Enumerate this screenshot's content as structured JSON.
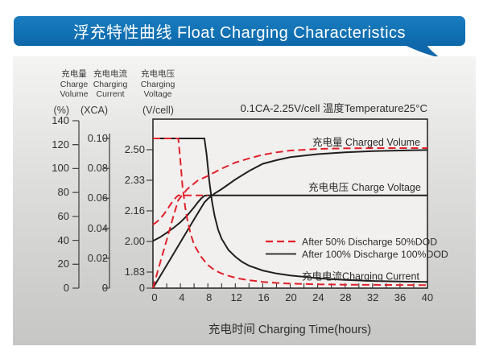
{
  "banner": {
    "title": "浮充特性曲线 Float Charging Characteristics",
    "color": "#1172b4"
  },
  "axes_headers": {
    "volume": {
      "line1": "充电量",
      "line2": "Charge",
      "line3": "Volume",
      "unit": "(%)"
    },
    "current": {
      "line1": "充电电流",
      "line2": "Charging",
      "line3": "Current",
      "unit": "(XCA)"
    },
    "voltage": {
      "line1": "充电电压",
      "line2": "Charging",
      "line3": "Voltage",
      "unit": "(V/cell)"
    }
  },
  "legend": [
    {
      "label": "After 50% Discharge 50%DOD",
      "style": "dashed",
      "color": "#e2202b"
    },
    {
      "label": "After 100%  Discharge 100%DOD",
      "style": "solid",
      "color": "#231f20"
    }
  ],
  "curve_labels": {
    "volume": "充电量 Charged Volume",
    "voltage": "充电电压 Charge Voltage",
    "current": "充电电流Charging Current"
  },
  "chart_data": {
    "type": "line",
    "title": "浮充特性曲线 Float Charging Characteristics",
    "condition": "0.1CA-2.25V/cell   温度Temperature25°C",
    "grid": false,
    "legend_position": "inside-right-middle",
    "x": {
      "label": "充电时间 Charging Time(hours)",
      "min": 0,
      "max": 40,
      "tick_step": 4,
      "minor_tick_step": 2,
      "ticks": [
        "0",
        "4",
        "8",
        "12",
        "16",
        "20",
        "24",
        "28",
        "32",
        "36",
        "40"
      ]
    },
    "axes": {
      "volume": {
        "label": "充电量 Charge Volume",
        "unit": "(%)",
        "min": 0,
        "max": 140,
        "ticks": [
          "140",
          "120",
          "100",
          "80",
          "60",
          "40",
          "20",
          "0"
        ]
      },
      "current": {
        "label": "充电电流 Charging Current",
        "unit": "(XCA)",
        "min": 0,
        "max": 0.1,
        "ticks": [
          "0.10",
          "0.08",
          "0.06",
          "0.04",
          "0.02",
          "0"
        ]
      },
      "voltage": {
        "label": "充电电压 Charging Voltage",
        "unit": "(V/cell)",
        "ticks": [
          "2.50",
          "2.33",
          "2.16",
          "2.00",
          "1.83"
        ],
        "zero_tick": "0"
      }
    },
    "series": [
      {
        "name": "charged-volume-100dod",
        "dod": "100%",
        "axis": "volume",
        "style": "solid",
        "color": "#231f20",
        "points": [
          [
            0,
            0
          ],
          [
            2,
            19
          ],
          [
            4,
            38
          ],
          [
            6,
            57
          ],
          [
            7.5,
            71
          ],
          [
            8,
            74
          ],
          [
            9,
            78.5
          ],
          [
            10,
            82
          ],
          [
            12,
            90
          ],
          [
            14,
            97
          ],
          [
            16,
            103
          ],
          [
            18,
            106
          ],
          [
            20,
            108.5
          ],
          [
            24,
            111
          ],
          [
            28,
            112.5
          ],
          [
            32,
            113.5
          ],
          [
            36,
            114
          ],
          [
            40,
            114.4
          ]
        ]
      },
      {
        "name": "charge-voltage-100dod",
        "dod": "100%",
        "axis": "voltage",
        "style": "solid",
        "color": "#231f20",
        "points": [
          [
            0,
            2.0
          ],
          [
            1,
            2.02
          ],
          [
            2,
            2.045
          ],
          [
            3,
            2.072
          ],
          [
            4,
            2.103
          ],
          [
            5,
            2.14
          ],
          [
            6,
            2.185
          ],
          [
            6.5,
            2.21
          ],
          [
            7,
            2.232
          ],
          [
            7.5,
            2.248
          ],
          [
            8,
            2.25
          ],
          [
            40,
            2.25
          ]
        ]
      },
      {
        "name": "charging-current-100dod",
        "dod": "100%",
        "axis": "current",
        "style": "solid",
        "color": "#231f20",
        "points": [
          [
            0,
            0.1
          ],
          [
            7.5,
            0.1
          ],
          [
            7.8,
            0.09
          ],
          [
            8.2,
            0.072
          ],
          [
            8.6,
            0.058
          ],
          [
            9,
            0.048
          ],
          [
            9.5,
            0.039
          ],
          [
            10,
            0.033
          ],
          [
            11,
            0.0255
          ],
          [
            12,
            0.021
          ],
          [
            13,
            0.0175
          ],
          [
            14,
            0.015
          ],
          [
            16,
            0.0118
          ],
          [
            18,
            0.0098
          ],
          [
            20,
            0.0085
          ],
          [
            24,
            0.0066
          ],
          [
            28,
            0.0055
          ],
          [
            32,
            0.0048
          ],
          [
            36,
            0.0044
          ],
          [
            40,
            0.0042
          ]
        ]
      },
      {
        "name": "charged-volume-50dod",
        "dod": "50%",
        "axis": "volume",
        "style": "dashed",
        "color": "#e2202b",
        "points": [
          [
            0,
            0
          ],
          [
            1,
            20
          ],
          [
            2,
            40
          ],
          [
            3,
            60
          ],
          [
            3.7,
            73
          ],
          [
            5,
            82
          ],
          [
            6.5,
            89
          ],
          [
            8,
            93
          ],
          [
            10,
            99
          ],
          [
            12,
            104
          ],
          [
            14,
            107.5
          ],
          [
            16,
            110.5
          ],
          [
            18,
            112.5
          ],
          [
            20,
            114
          ],
          [
            24,
            115.3
          ],
          [
            28,
            115.8
          ],
          [
            32,
            116
          ],
          [
            36,
            116
          ],
          [
            40,
            116
          ]
        ]
      },
      {
        "name": "charge-voltage-50dod",
        "dod": "50%",
        "axis": "voltage",
        "style": "dashed",
        "color": "#e2202b",
        "points": [
          [
            0,
            2.09
          ],
          [
            0.5,
            2.103
          ],
          [
            1,
            2.12
          ],
          [
            1.5,
            2.142
          ],
          [
            2,
            2.168
          ],
          [
            2.5,
            2.197
          ],
          [
            3,
            2.224
          ],
          [
            3.5,
            2.244
          ],
          [
            3.7,
            2.25
          ],
          [
            8,
            2.25
          ]
        ]
      },
      {
        "name": "charging-current-50dod",
        "dod": "50%",
        "axis": "current",
        "style": "dashed",
        "color": "#e2202b",
        "points": [
          [
            0,
            0.1
          ],
          [
            3.7,
            0.1
          ],
          [
            4,
            0.085
          ],
          [
            4.3,
            0.068
          ],
          [
            4.7,
            0.054
          ],
          [
            5,
            0.046
          ],
          [
            5.5,
            0.036
          ],
          [
            6,
            0.029
          ],
          [
            7,
            0.021
          ],
          [
            8,
            0.0155
          ],
          [
            9,
            0.012
          ],
          [
            10,
            0.0098
          ],
          [
            11,
            0.0082
          ],
          [
            12,
            0.007
          ],
          [
            13,
            0.006
          ],
          [
            14,
            0.0053
          ],
          [
            16,
            0.0042
          ],
          [
            18,
            0.0035
          ],
          [
            20,
            0.003
          ],
          [
            24,
            0.0026
          ],
          [
            28,
            0.0023
          ],
          [
            32,
            0.0022
          ],
          [
            36,
            0.0021
          ],
          [
            40,
            0.002
          ]
        ]
      }
    ]
  }
}
